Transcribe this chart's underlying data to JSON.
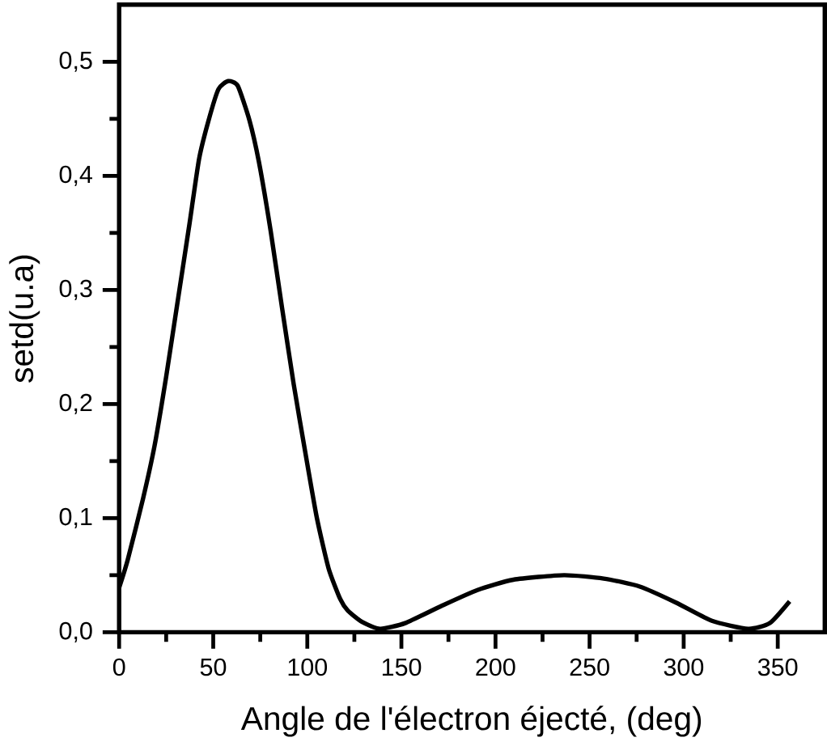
{
  "chart_data": {
    "type": "line",
    "xlabel": "Angle de l'électron éjecté, (deg)",
    "ylabel": "setd(u.a)",
    "x": [
      0,
      4.5,
      12.7,
      18.9,
      25,
      31.2,
      37.4,
      42.5,
      47.6,
      52.8,
      57.9,
      63,
      69.2,
      74.3,
      80.5,
      86.6,
      92.8,
      99,
      105.1,
      111.3,
      117.5,
      121.5,
      129.1,
      138.7,
      152,
      171.2,
      190.4,
      209.5,
      236.4,
      257.5,
      276.7,
      295.9,
      315,
      334.3,
      345.8,
      356.3
    ],
    "series": [
      {
        "color": "#000000",
        "values": [
          0.039,
          0.063,
          0.117,
          0.164,
          0.224,
          0.291,
          0.358,
          0.415,
          0.449,
          0.476,
          0.483,
          0.479,
          0.449,
          0.412,
          0.352,
          0.284,
          0.217,
          0.157,
          0.1,
          0.056,
          0.029,
          0.019,
          0.009,
          0.003,
          0.008,
          0.023,
          0.037,
          0.046,
          0.05,
          0.047,
          0.04,
          0.026,
          0.01,
          0.003,
          0.008,
          0.027
        ]
      }
    ],
    "xlim": [
      0,
      375
    ],
    "ylim": [
      0,
      0.55
    ],
    "xticks": [
      0,
      50,
      100,
      150,
      200,
      250,
      300,
      350
    ],
    "yticks": [
      {
        "value": 0,
        "label": "0,0"
      },
      {
        "value": 0.1,
        "label": "0,1"
      },
      {
        "value": 0.2,
        "label": "0,2"
      },
      {
        "value": 0.3,
        "label": "0,3"
      },
      {
        "value": 0.4,
        "label": "0,4"
      },
      {
        "value": 0.5,
        "label": "0,5"
      }
    ]
  }
}
